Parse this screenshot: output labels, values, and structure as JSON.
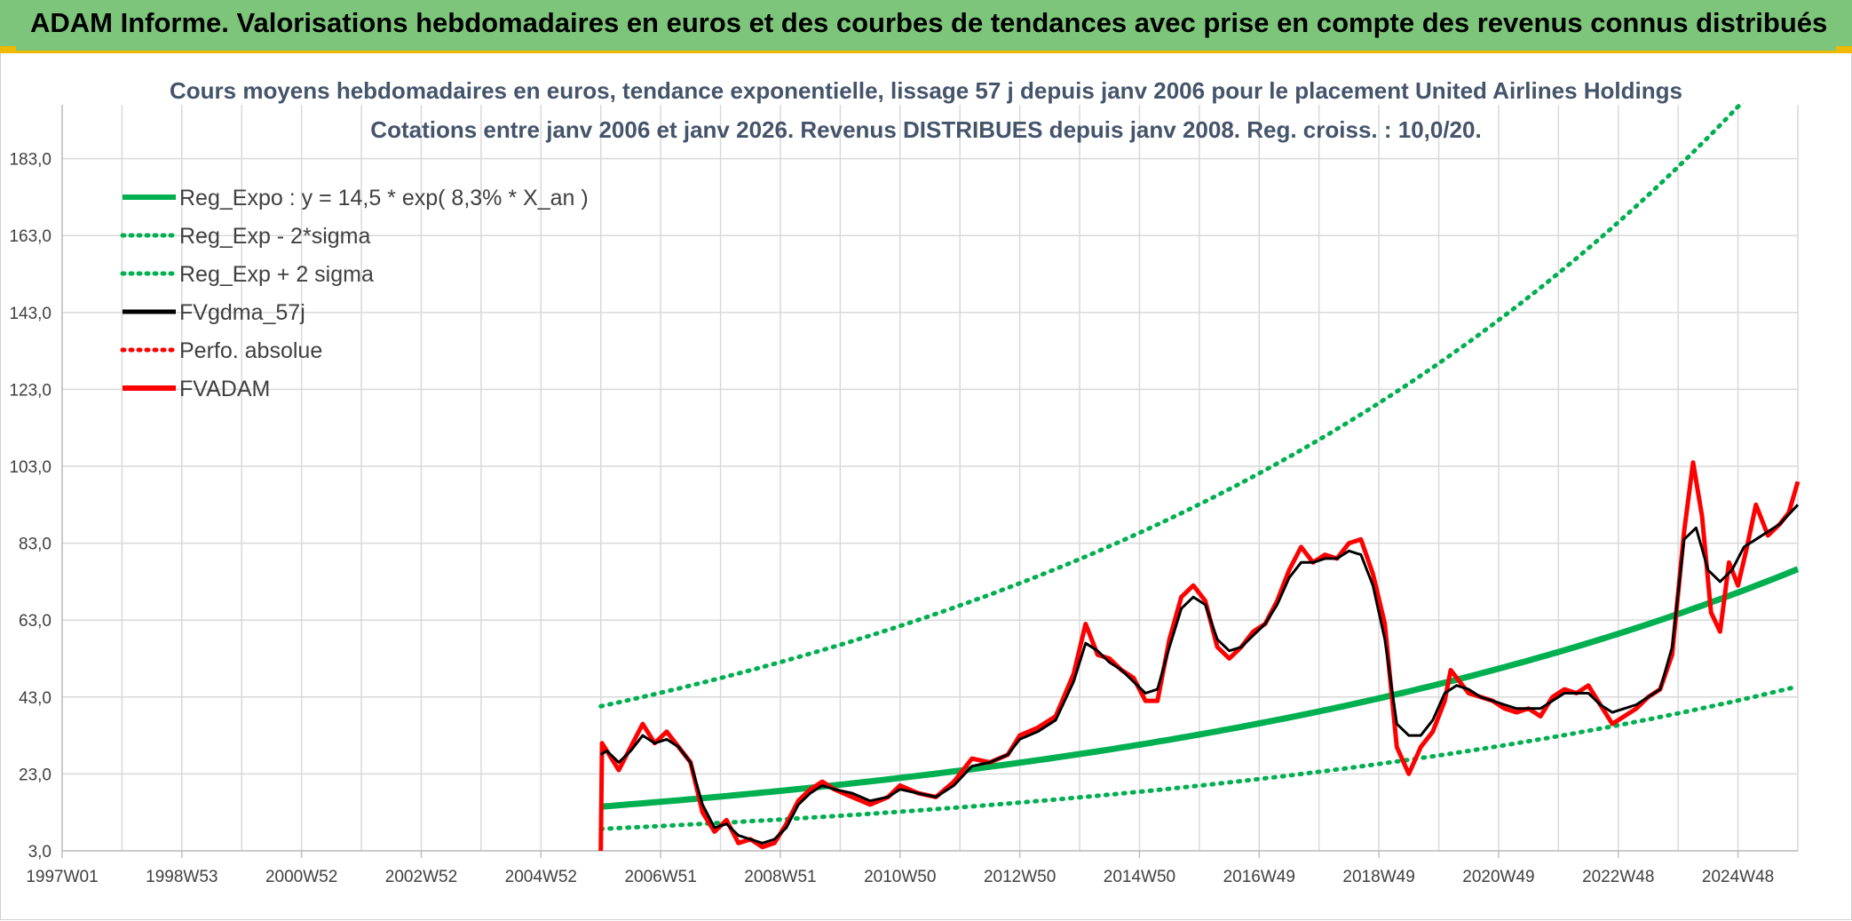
{
  "banner": {
    "title": "ADAM Informe. Valorisations hebdomadaires en euros et des courbes de tendances avec prise en compte des revenus connus distribués"
  },
  "chart_data": {
    "type": "line",
    "title_lines": [
      "Cours moyens hebdomadaires en euros, tendance exponentielle, lissage 57 j depuis janv 2006 pour le placement United Airlines Holdings",
      "Cotations entre janv 2006 et janv 2026. Revenus DISTRIBUES depuis janv 2008. Reg. croiss. : 10,0/20."
    ],
    "xlabel": "",
    "ylabel": "",
    "x_tick_labels": [
      "1997W01",
      "1998W53",
      "2000W52",
      "2002W52",
      "2004W52",
      "2006W51",
      "2008W51",
      "2010W50",
      "2012W50",
      "2014W50",
      "2016W49",
      "2018W49",
      "2020W49",
      "2022W48",
      "2024W48"
    ],
    "x_range_years": [
      1997.0,
      2026.0
    ],
    "y_tick_labels": [
      "3,0",
      "23,0",
      "43,0",
      "63,0",
      "83,0",
      "103,0",
      "123,0",
      "143,0",
      "163,0",
      "183,0"
    ],
    "ylim": [
      3.0,
      197.0
    ],
    "grid": true,
    "legend_position": "top-left",
    "legend": [
      {
        "label": "Reg_Expo : y = 14,5 * exp( 8,3% *  X_an )",
        "color": "#00b050",
        "style": "solid-thick"
      },
      {
        "label": "Reg_Exp - 2*sigma",
        "color": "#00b050",
        "style": "dotted"
      },
      {
        "label": "Reg_Exp + 2 sigma",
        "color": "#00b050",
        "style": "dotted"
      },
      {
        "label": "FVgdma_57j",
        "color": "#000000",
        "style": "solid"
      },
      {
        "label": "Perfo. absolue",
        "color": "#ff0000",
        "style": "dotted"
      },
      {
        "label": "FVADAM",
        "color": "#ff0000",
        "style": "solid-thick"
      }
    ],
    "trend": {
      "a": 14.5,
      "rate": 0.083,
      "start_year": 2006.0,
      "end_year": 2026.0,
      "lower_factor": 0.6,
      "upper_factor": 2.8
    },
    "series": [
      {
        "name": "FVADAM",
        "color": "#ff0000",
        "x": [
          2006.0,
          2006.02,
          2006.1,
          2006.3,
          2006.5,
          2006.7,
          2006.9,
          2007.1,
          2007.3,
          2007.5,
          2007.7,
          2007.9,
          2008.1,
          2008.3,
          2008.5,
          2008.7,
          2008.9,
          2009.1,
          2009.3,
          2009.5,
          2009.7,
          2009.9,
          2010.2,
          2010.5,
          2010.8,
          2011.0,
          2011.3,
          2011.6,
          2011.9,
          2012.2,
          2012.5,
          2012.8,
          2013.0,
          2013.3,
          2013.6,
          2013.9,
          2014.1,
          2014.3,
          2014.5,
          2014.7,
          2014.9,
          2015.1,
          2015.3,
          2015.5,
          2015.7,
          2015.9,
          2016.1,
          2016.3,
          2016.5,
          2016.7,
          2016.9,
          2017.1,
          2017.3,
          2017.5,
          2017.7,
          2017.9,
          2018.1,
          2018.3,
          2018.5,
          2018.7,
          2018.9,
          2019.1,
          2019.3,
          2019.5,
          2019.7,
          2019.9,
          2020.1,
          2020.2,
          2020.35,
          2020.5,
          2020.7,
          2020.9,
          2021.1,
          2021.3,
          2021.5,
          2021.7,
          2021.9,
          2022.1,
          2022.3,
          2022.5,
          2022.7,
          2022.9,
          2023.1,
          2023.3,
          2023.5,
          2023.7,
          2023.9,
          2024.1,
          2024.25,
          2024.4,
          2024.55,
          2024.7,
          2024.85,
          2025.0,
          2025.15,
          2025.3,
          2025.5,
          2025.7,
          2025.85,
          2026.0
        ],
        "values": [
          3.0,
          31.0,
          29.0,
          24.0,
          30.0,
          36.0,
          31.0,
          34.0,
          30.0,
          26.0,
          13.0,
          8.0,
          11.0,
          5.0,
          6.0,
          4.0,
          5.0,
          10.0,
          16.0,
          19.0,
          21.0,
          19.0,
          17.0,
          15.0,
          17.0,
          20.0,
          18.0,
          17.0,
          21.0,
          27.0,
          26.0,
          28.0,
          33.0,
          35.0,
          38.0,
          49.0,
          62.0,
          54.0,
          53.0,
          50.0,
          48.0,
          42.0,
          42.0,
          58.0,
          69.0,
          72.0,
          68.0,
          56.0,
          53.0,
          56.0,
          60.0,
          62.0,
          68.0,
          76.0,
          82.0,
          78.0,
          80.0,
          79.0,
          83.0,
          84.0,
          75.0,
          62.0,
          30.0,
          23.0,
          30.0,
          34.0,
          42.0,
          50.0,
          47.0,
          44.0,
          43.0,
          42.0,
          40.0,
          39.0,
          40.0,
          38.0,
          43.0,
          45.0,
          44.0,
          46.0,
          41.0,
          36.0,
          38.0,
          40.0,
          43.0,
          45.0,
          54.0,
          86.0,
          104.0,
          90.0,
          65.0,
          60.0,
          78.0,
          72.0,
          82.0,
          93.0,
          85.0,
          88.0,
          91.0,
          99.0
        ]
      },
      {
        "name": "FVgdma_57j",
        "color": "#000000",
        "x": [
          2006.0,
          2006.1,
          2006.3,
          2006.5,
          2006.7,
          2006.9,
          2007.1,
          2007.3,
          2007.5,
          2007.7,
          2007.9,
          2008.1,
          2008.3,
          2008.5,
          2008.7,
          2008.9,
          2009.1,
          2009.3,
          2009.5,
          2009.7,
          2009.9,
          2010.2,
          2010.5,
          2010.8,
          2011.0,
          2011.3,
          2011.6,
          2011.9,
          2012.2,
          2012.5,
          2012.8,
          2013.0,
          2013.3,
          2013.6,
          2013.9,
          2014.1,
          2014.3,
          2014.5,
          2014.7,
          2014.9,
          2015.1,
          2015.3,
          2015.5,
          2015.7,
          2015.9,
          2016.1,
          2016.3,
          2016.5,
          2016.7,
          2016.9,
          2017.1,
          2017.3,
          2017.5,
          2017.7,
          2017.9,
          2018.1,
          2018.3,
          2018.5,
          2018.7,
          2018.9,
          2019.1,
          2019.3,
          2019.5,
          2019.7,
          2019.9,
          2020.1,
          2020.3,
          2020.5,
          2020.7,
          2020.9,
          2021.1,
          2021.3,
          2021.5,
          2021.7,
          2021.9,
          2022.1,
          2022.3,
          2022.5,
          2022.7,
          2022.9,
          2023.1,
          2023.3,
          2023.5,
          2023.7,
          2023.9,
          2024.1,
          2024.3,
          2024.5,
          2024.7,
          2024.9,
          2025.1,
          2025.3,
          2025.5,
          2025.7,
          2026.0
        ],
        "values": [
          28.0,
          29.0,
          26.0,
          29.0,
          33.0,
          31.0,
          32.0,
          30.0,
          26.0,
          15.0,
          9.0,
          10.0,
          7.0,
          6.0,
          5.0,
          6.0,
          9.0,
          15.0,
          18.0,
          20.0,
          19.0,
          18.0,
          16.0,
          17.0,
          19.0,
          18.0,
          17.0,
          20.0,
          25.0,
          26.0,
          28.0,
          32.0,
          34.0,
          37.0,
          47.0,
          57.0,
          55.0,
          52.0,
          50.0,
          47.0,
          44.0,
          45.0,
          56.0,
          66.0,
          69.0,
          67.0,
          58.0,
          55.0,
          56.0,
          59.0,
          62.0,
          67.0,
          74.0,
          78.0,
          78.0,
          79.0,
          79.0,
          81.0,
          80.0,
          72.0,
          58.0,
          36.0,
          33.0,
          33.0,
          37.0,
          44.0,
          46.0,
          45.0,
          43.0,
          42.0,
          41.0,
          40.0,
          40.0,
          40.0,
          42.0,
          44.0,
          44.0,
          44.0,
          41.0,
          39.0,
          40.0,
          41.0,
          43.0,
          45.0,
          56.0,
          84.0,
          87.0,
          76.0,
          73.0,
          76.0,
          82.0,
          84.0,
          86.0,
          88.0,
          93.0
        ]
      }
    ]
  }
}
